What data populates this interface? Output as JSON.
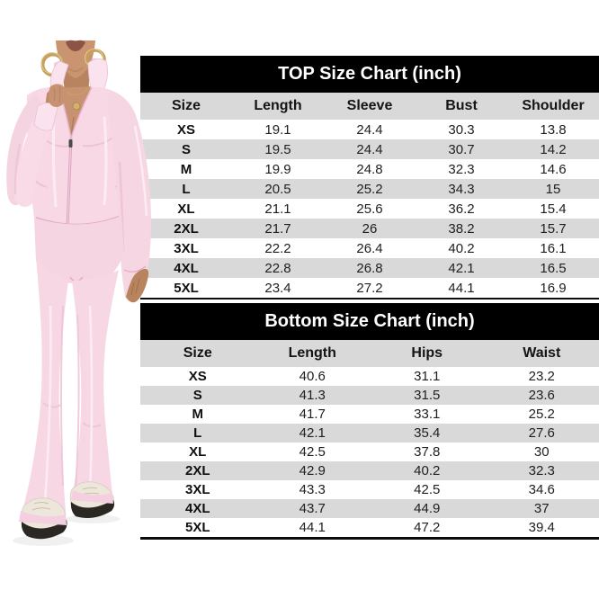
{
  "photo": {
    "description": "model wearing light-pink zip-up jacket and flare pants with gold hoop earrings and white sneakers",
    "colors": {
      "suit": "#f7d8e4",
      "suit_light": "#fdeef5",
      "suit_shadow": "#ecc0d4",
      "suit_deep": "#e2a9c2",
      "skin": "#c79272",
      "skin_shadow": "#b8845f",
      "lips": "#8e5347",
      "gold": "#c6a15e",
      "sneaker": "#ece6db",
      "sole": "#2b2824"
    }
  },
  "charts_style": {
    "title_bg": "#000000",
    "title_color": "#ffffff",
    "header_bg": "#d9d9d9",
    "stripe_bg": "#d9d9d9",
    "text_color": "#1f1f1f"
  },
  "chart_data": [
    {
      "type": "table",
      "title": "TOP Size Chart (inch)",
      "columns": [
        "Size",
        "Length",
        "Sleeve",
        "Bust",
        "Shoulder"
      ],
      "rows": [
        [
          "XS",
          "19.1",
          "24.4",
          "30.3",
          "13.8"
        ],
        [
          "S",
          "19.5",
          "24.4",
          "30.7",
          "14.2"
        ],
        [
          "M",
          "19.9",
          "24.8",
          "32.3",
          "14.6"
        ],
        [
          "L",
          "20.5",
          "25.2",
          "34.3",
          "15"
        ],
        [
          "XL",
          "21.1",
          "25.6",
          "36.2",
          "15.4"
        ],
        [
          "2XL",
          "21.7",
          "26",
          "38.2",
          "15.7"
        ],
        [
          "3XL",
          "22.2",
          "26.4",
          "40.2",
          "16.1"
        ],
        [
          "4XL",
          "22.8",
          "26.8",
          "42.1",
          "16.5"
        ],
        [
          "5XL",
          "23.4",
          "27.2",
          "44.1",
          "16.9"
        ]
      ]
    },
    {
      "type": "table",
      "title": "Bottom Size Chart (inch)",
      "columns": [
        "Size",
        "Length",
        "Hips",
        "Waist"
      ],
      "rows": [
        [
          "XS",
          "40.6",
          "31.1",
          "23.2"
        ],
        [
          "S",
          "41.3",
          "31.5",
          "23.6"
        ],
        [
          "M",
          "41.7",
          "33.1",
          "25.2"
        ],
        [
          "L",
          "42.1",
          "35.4",
          "27.6"
        ],
        [
          "XL",
          "42.5",
          "37.8",
          "30"
        ],
        [
          "2XL",
          "42.9",
          "40.2",
          "32.3"
        ],
        [
          "3XL",
          "43.3",
          "42.5",
          "34.6"
        ],
        [
          "4XL",
          "43.7",
          "44.9",
          "37"
        ],
        [
          "5XL",
          "44.1",
          "47.2",
          "39.4"
        ]
      ]
    }
  ]
}
